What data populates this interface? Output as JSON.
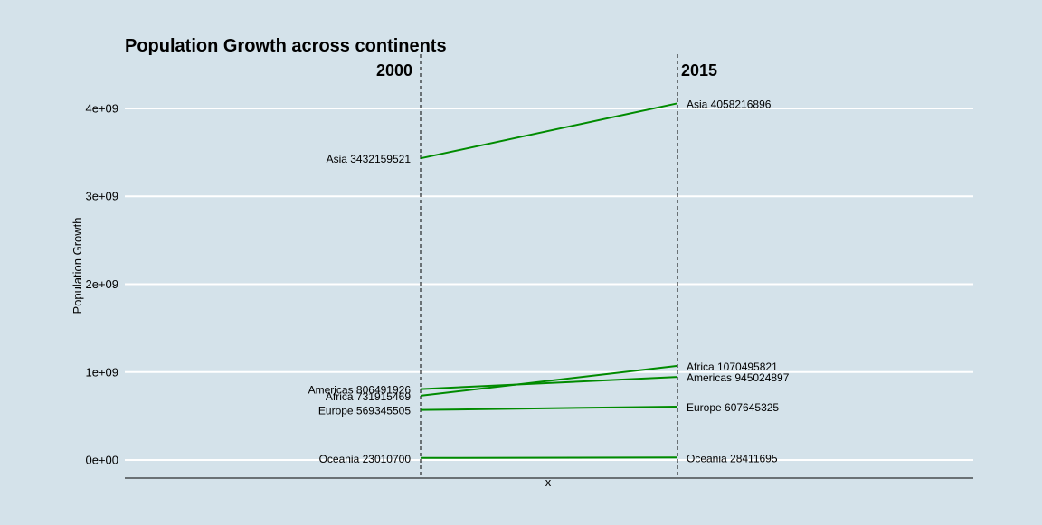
{
  "chart_data": {
    "type": "line",
    "title": "Population Growth across continents",
    "xlabel": "x",
    "ylabel": "Population Growth",
    "x": [
      "2000",
      "2015"
    ],
    "ylim": [
      -200000000,
      4200000000
    ],
    "yticks": [
      {
        "value": 0,
        "label": "0e+00"
      },
      {
        "value": 1000000000,
        "label": "1e+09"
      },
      {
        "value": 2000000000,
        "label": "2e+09"
      },
      {
        "value": 3000000000,
        "label": "3e+09"
      },
      {
        "value": 4000000000,
        "label": "4e+09"
      }
    ],
    "grid": true,
    "line_color": "#008b00",
    "series": [
      {
        "name": "Asia",
        "values": [
          3432159521,
          4058216896
        ],
        "labels": [
          "Asia 3432159521",
          "Asia 4058216896"
        ]
      },
      {
        "name": "Americas",
        "values": [
          806491926,
          945024897
        ],
        "labels": [
          "Americas 806491926",
          "Americas 945024897"
        ]
      },
      {
        "name": "Africa",
        "values": [
          731915469,
          1070495821
        ],
        "labels": [
          "Africa 731915469",
          "Africa 1070495821"
        ]
      },
      {
        "name": "Europe",
        "values": [
          569345505,
          607645325
        ],
        "labels": [
          "Europe 569345505",
          "Europe 607645325"
        ]
      },
      {
        "name": "Oceania",
        "values": [
          23010700,
          28411695
        ],
        "labels": [
          "Oceania 23010700",
          "Oceania 28411695"
        ]
      }
    ]
  }
}
